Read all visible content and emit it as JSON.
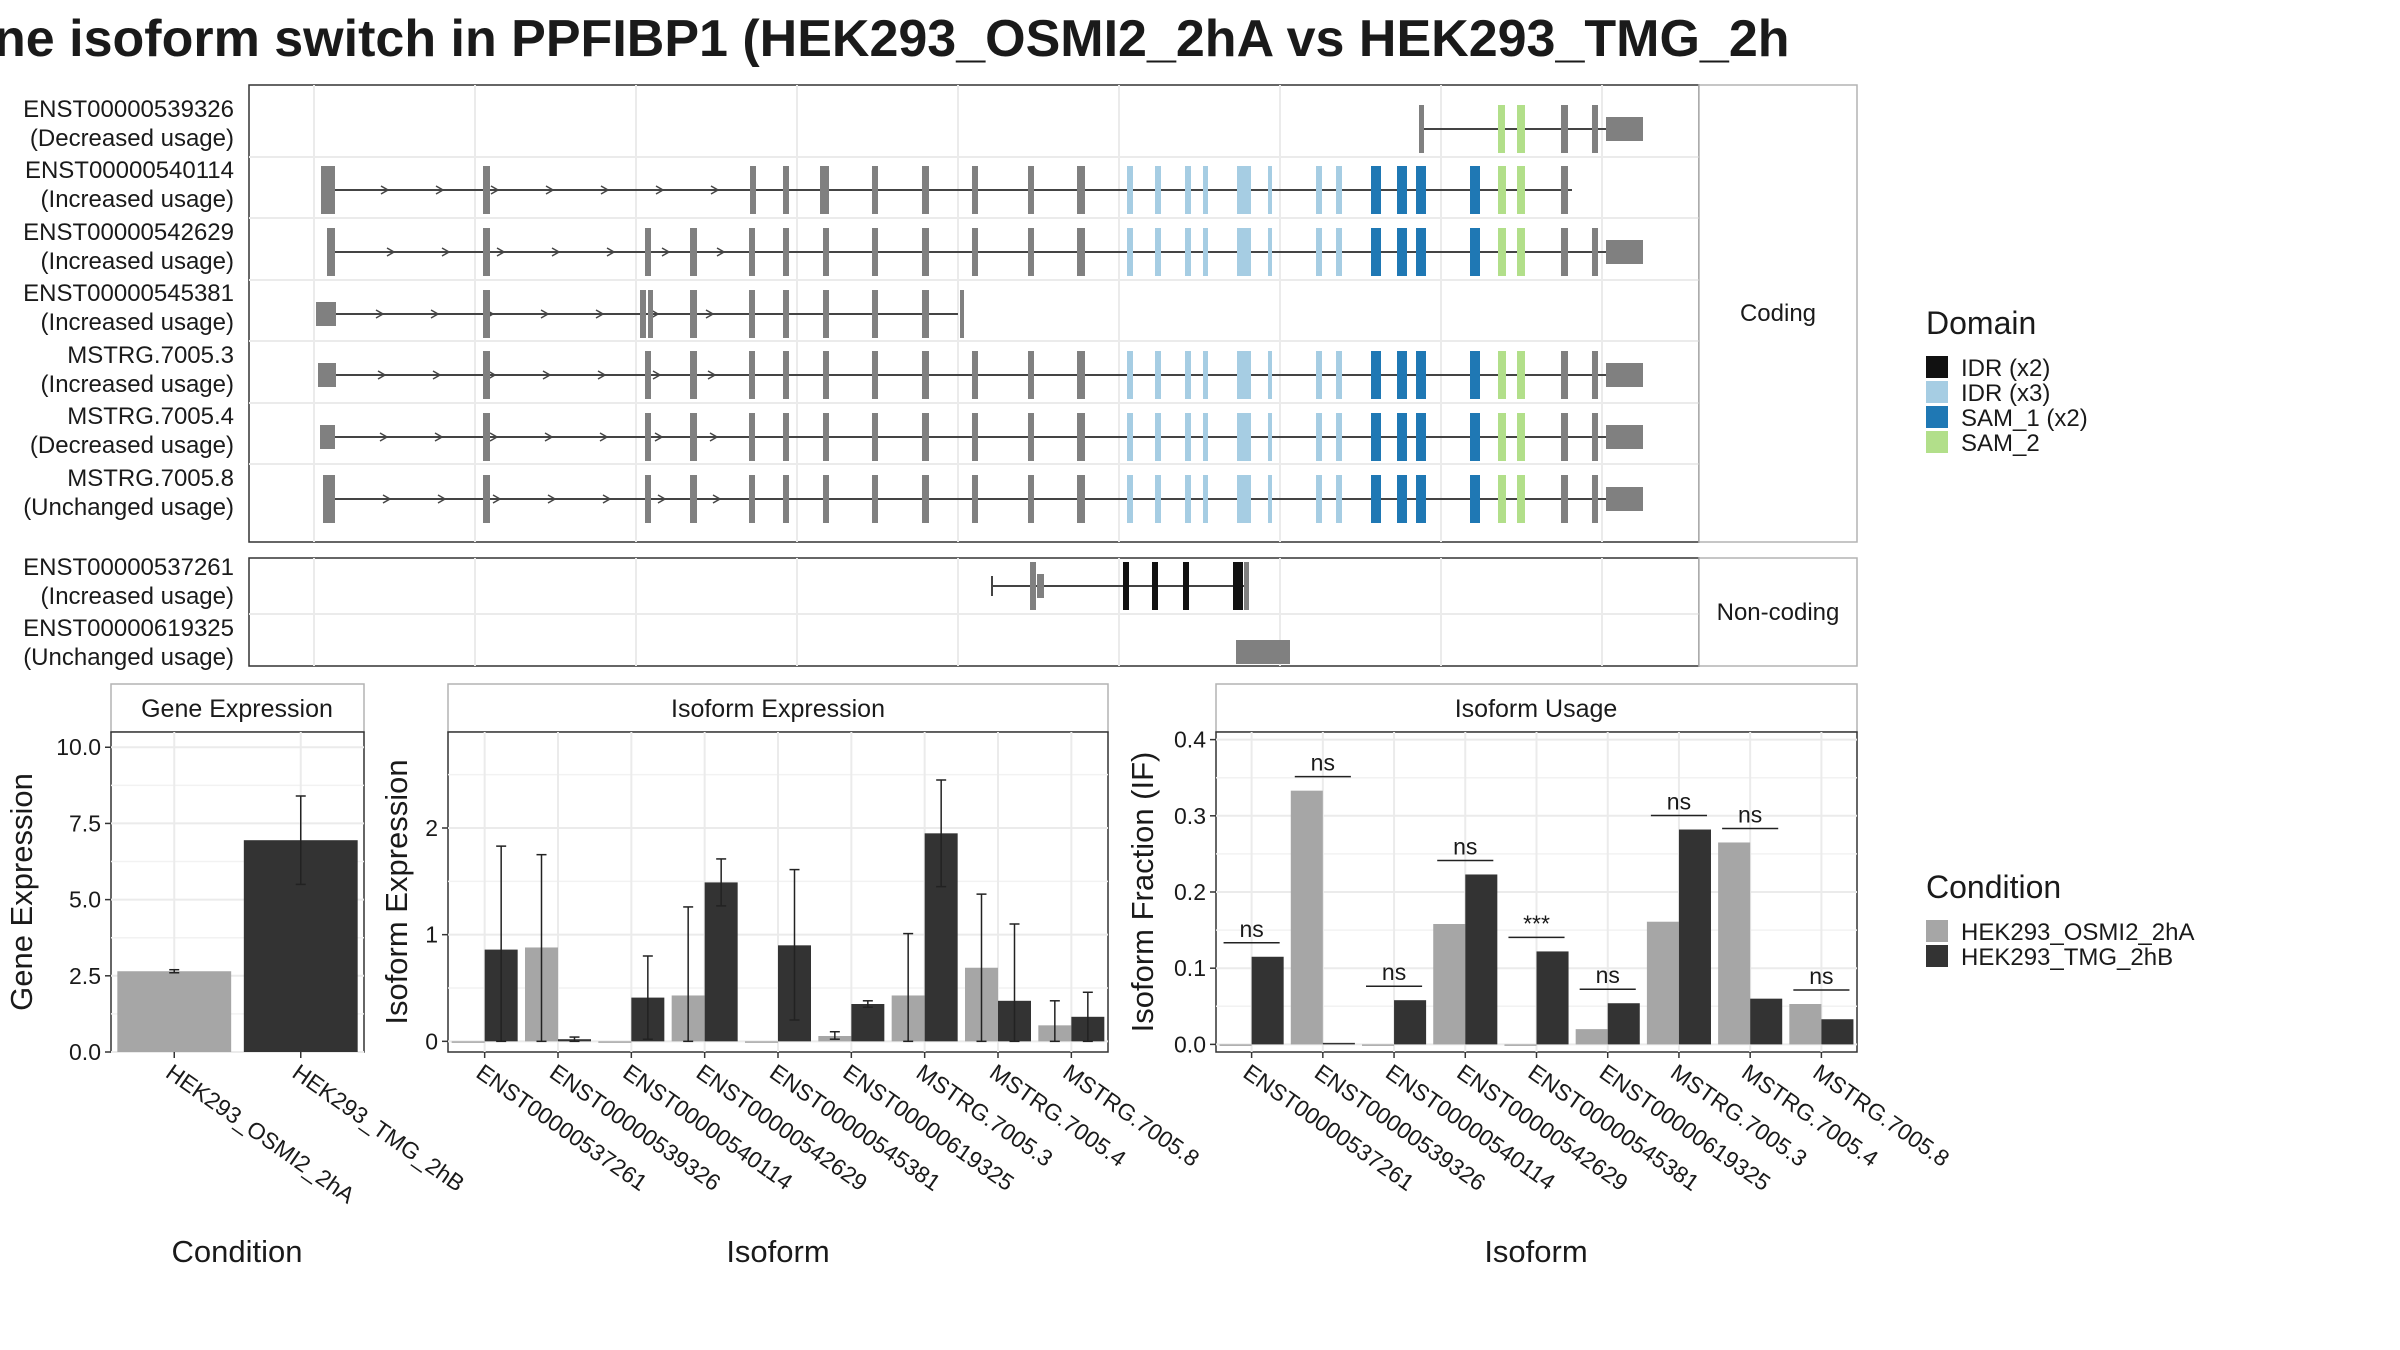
{
  "title": "ne isoform switch in PPFIBP1 (HEK293_OSMI2_2hA vs HEK293_TMG_2h",
  "colors": {
    "cond_a": "#a6a6a6",
    "cond_b": "#333333",
    "exon": "#808080",
    "intron": "#444444",
    "idr_x2": "#111111",
    "idr_x3": "#a6cde3",
    "sam1": "#1f78b4",
    "sam2": "#b2df8a"
  },
  "structure": {
    "coding_label": "Coding",
    "noncoding_label": "Non-coding",
    "coding": [
      {
        "id": "ENST00000539326",
        "usage": "(Decreased usage)"
      },
      {
        "id": "ENST00000540114",
        "usage": "(Increased usage)"
      },
      {
        "id": "ENST00000542629",
        "usage": "(Increased usage)"
      },
      {
        "id": "ENST00000545381",
        "usage": "(Increased usage)"
      },
      {
        "id": "MSTRG.7005.3",
        "usage": "(Increased usage)"
      },
      {
        "id": "MSTRG.7005.4",
        "usage": "(Decreased usage)"
      },
      {
        "id": "MSTRG.7005.8",
        "usage": "(Unchanged usage)"
      }
    ],
    "noncoding": [
      {
        "id": "ENST00000537261",
        "usage": "(Increased usage)"
      },
      {
        "id": "ENST00000619325",
        "usage": "(Unchanged usage)"
      }
    ]
  },
  "legend_domain": {
    "title": "Domain",
    "items": [
      {
        "label": "IDR (x2)",
        "key": "idr_x2"
      },
      {
        "label": "IDR (x3)",
        "key": "idr_x3"
      },
      {
        "label": "SAM_1 (x2)",
        "key": "sam1"
      },
      {
        "label": "SAM_2",
        "key": "sam2"
      }
    ]
  },
  "legend_condition": {
    "title": "Condition",
    "items": [
      {
        "label": "HEK293_OSMI2_2hA",
        "key": "cond_a"
      },
      {
        "label": "HEK293_TMG_2hB",
        "key": "cond_b"
      }
    ]
  },
  "chart_data": [
    {
      "type": "bar",
      "title": "Gene Expression",
      "xlabel": "Condition",
      "ylabel": "Gene Expression",
      "ylim": [
        0,
        10.5
      ],
      "yticks": [
        "0.0",
        "2.5",
        "5.0",
        "7.5",
        "10.0"
      ],
      "categories": [
        "HEK293_OSMI2_2hA",
        "HEK293_TMG_2hB"
      ],
      "values": [
        2.65,
        6.95
      ],
      "errors": [
        [
          2.6,
          2.7
        ],
        [
          5.5,
          8.4
        ]
      ]
    },
    {
      "type": "bar",
      "title": "Isoform Expression",
      "xlabel": "Isoform",
      "ylabel": "Isoform Expression",
      "ylim": [
        -0.1,
        2.9
      ],
      "yticks": [
        "0",
        "1",
        "2"
      ],
      "categories": [
        "ENST00000537261",
        "ENST00000539326",
        "ENST00000540114",
        "ENST00000542629",
        "ENST00000545381",
        "ENST00000619325",
        "MSTRG.7005.3",
        "MSTRG.7005.4",
        "MSTRG.7005.8"
      ],
      "series": [
        {
          "name": "HEK293_OSMI2_2hA",
          "values": [
            0,
            0.88,
            0,
            0.43,
            0,
            0.05,
            0.43,
            0.69,
            0.15
          ],
          "errors": [
            null,
            [
              0,
              1.75
            ],
            null,
            [
              0,
              1.26
            ],
            null,
            [
              0.02,
              0.09
            ],
            [
              0,
              1.01
            ],
            [
              0,
              1.38
            ],
            [
              0,
              0.38
            ]
          ]
        },
        {
          "name": "HEK293_TMG_2hB",
          "values": [
            0.86,
            0.02,
            0.41,
            1.49,
            0.9,
            0.35,
            1.95,
            0.38,
            0.23
          ],
          "errors": [
            [
              0,
              1.83
            ],
            [
              0,
              0.04
            ],
            [
              0.02,
              0.8
            ],
            [
              1.27,
              1.71
            ],
            [
              0.2,
              1.61
            ],
            [
              0.32,
              0.38
            ],
            [
              1.45,
              2.45
            ],
            [
              0,
              1.1
            ],
            [
              0,
              0.46
            ]
          ]
        }
      ]
    },
    {
      "type": "bar",
      "title": "Isoform Usage",
      "xlabel": "Isoform",
      "ylabel": "Isoform Fraction (IF)",
      "ylim": [
        -0.01,
        0.41
      ],
      "yticks": [
        "0.0",
        "0.1",
        "0.2",
        "0.3",
        "0.4"
      ],
      "categories": [
        "ENST00000537261",
        "ENST00000539326",
        "ENST00000540114",
        "ENST00000542629",
        "ENST00000545381",
        "ENST00000619325",
        "MSTRG.7005.3",
        "MSTRG.7005.4",
        "MSTRG.7005.8"
      ],
      "series": [
        {
          "name": "HEK293_OSMI2_2hA",
          "values": [
            0,
            0.333,
            0,
            0.158,
            0,
            0.02,
            0.161,
            0.265,
            0.053
          ]
        },
        {
          "name": "HEK293_TMG_2hB",
          "values": [
            0.115,
            0.002,
            0.058,
            0.223,
            0.122,
            0.054,
            0.282,
            0.06,
            0.033
          ]
        }
      ],
      "significance": [
        "ns",
        "ns",
        "ns",
        "ns",
        "***",
        "ns",
        "ns",
        "ns",
        "ns"
      ]
    }
  ]
}
